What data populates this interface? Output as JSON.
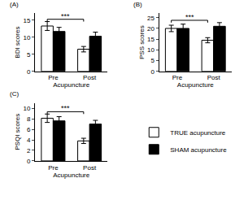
{
  "chart_data": [
    {
      "type": "bar",
      "title": "(A)",
      "x_label": "Acupuncture",
      "y_label": "BDI scores",
      "categories": [
        "Pre",
        "Post"
      ],
      "series": [
        {
          "name": "TRUE acupuncture",
          "color": "#ffffff",
          "values": [
            13.3,
            6.5
          ],
          "errors": [
            1.3,
            0.8
          ]
        },
        {
          "name": "SHAM acupuncture",
          "color": "#000000",
          "values": [
            11.7,
            10.3
          ],
          "errors": [
            1.2,
            1.2
          ]
        }
      ],
      "ylim": [
        0,
        17
      ],
      "yticks": [
        0,
        5,
        10,
        15
      ],
      "grid": false,
      "annotations": [
        {
          "text": "***",
          "from": "Pre",
          "to": "Post",
          "series": "TRUE acupuncture"
        }
      ]
    },
    {
      "type": "bar",
      "title": "(B)",
      "x_label": "Acupuncture",
      "y_label": "PSS scores",
      "categories": [
        "Pre",
        "Post"
      ],
      "series": [
        {
          "name": "TRUE acupuncture",
          "color": "#ffffff",
          "values": [
            20.0,
            14.5
          ],
          "errors": [
            1.5,
            1.2
          ]
        },
        {
          "name": "SHAM acupuncture",
          "color": "#000000",
          "values": [
            20.0,
            21.0
          ],
          "errors": [
            2.0,
            1.7
          ]
        }
      ],
      "ylim": [
        0,
        27
      ],
      "yticks": [
        0,
        5,
        10,
        15,
        20,
        25
      ],
      "grid": false,
      "annotations": [
        {
          "text": "***",
          "from": "Pre",
          "to": "Post",
          "series": "TRUE acupuncture"
        }
      ]
    },
    {
      "type": "bar",
      "title": "(C)",
      "x_label": "Acupuncture",
      "y_label": "PSQI scores",
      "categories": [
        "Pre",
        "Post"
      ],
      "series": [
        {
          "name": "TRUE acupuncture",
          "color": "#ffffff",
          "values": [
            8.1,
            3.8
          ],
          "errors": [
            0.8,
            0.5
          ]
        },
        {
          "name": "SHAM acupuncture",
          "color": "#000000",
          "values": [
            7.6,
            7.0
          ],
          "errors": [
            0.8,
            0.7
          ]
        }
      ],
      "ylim": [
        0,
        11
      ],
      "yticks": [
        0,
        2,
        4,
        6,
        8,
        10
      ],
      "grid": false,
      "legend": "right",
      "annotations": [
        {
          "text": "***",
          "from": "Pre",
          "to": "Post",
          "series": "TRUE acupuncture"
        }
      ]
    }
  ]
}
